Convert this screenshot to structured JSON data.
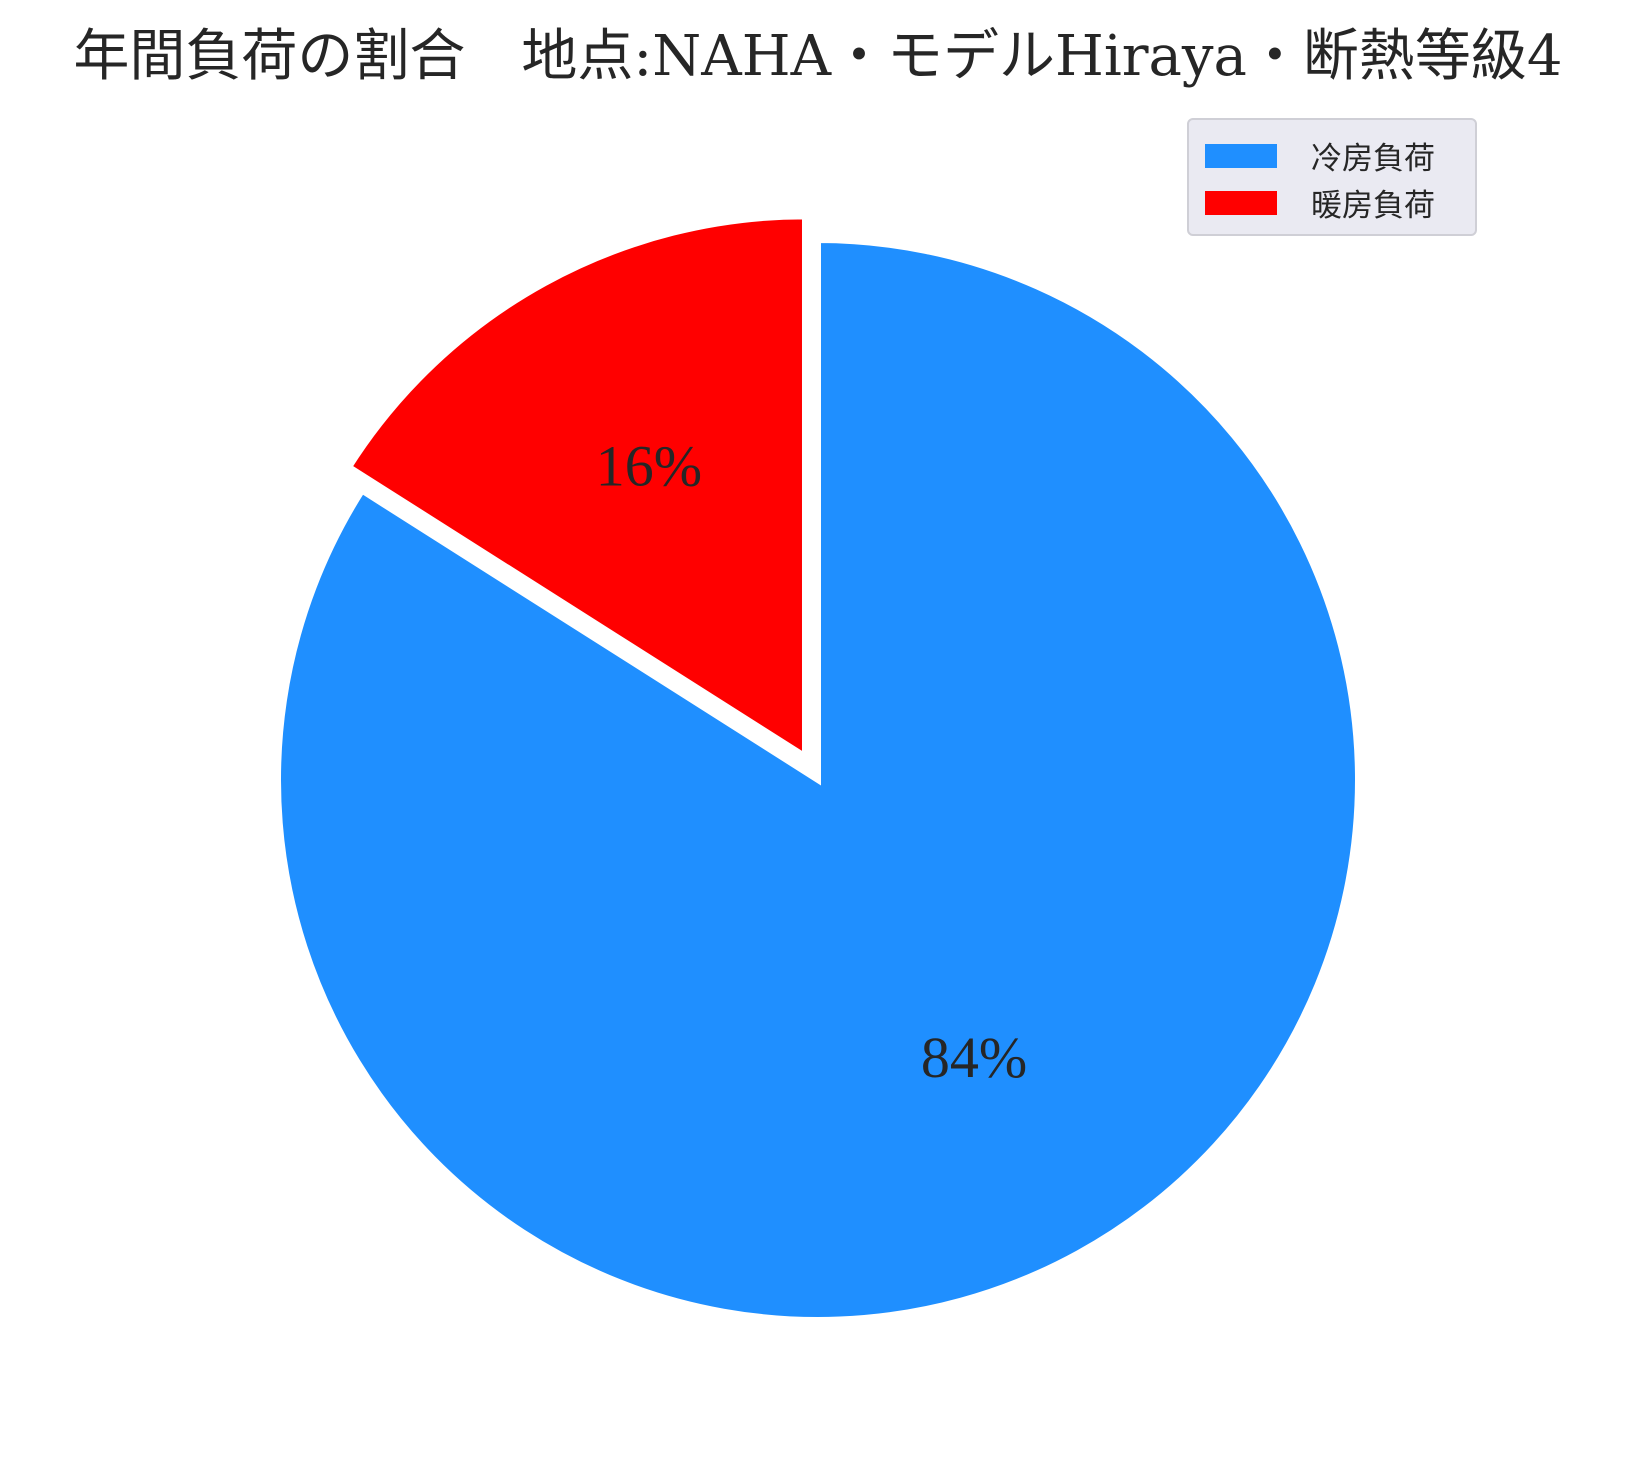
{
  "chart_data": {
    "type": "pie",
    "title": "年間負荷の割合　地点:NAHA・モデルHiraya・断熱等級4",
    "slices": [
      {
        "label": "冷房負荷",
        "value": 84,
        "display": "84%",
        "color": "#1f8fff",
        "exploded": false
      },
      {
        "label": "暖房負荷",
        "value": 16,
        "display": "16%",
        "color": "#ff0000",
        "exploded": true
      }
    ],
    "start_angle_deg": 90,
    "direction": "clockwise",
    "legend_position": "top-right"
  }
}
